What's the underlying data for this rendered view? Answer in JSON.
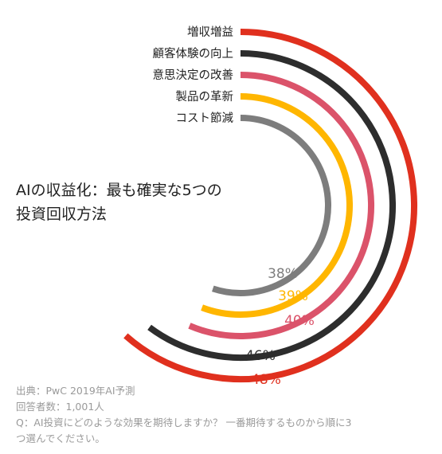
{
  "chart_data": {
    "type": "radial-bar",
    "title_lines": [
      "AIの収益化：最も確実な5つの",
      "投資回収方法"
    ],
    "unit": "%",
    "series": [
      {
        "label": "増収増益",
        "value": 48,
        "display": "48%",
        "color": "#e0301e"
      },
      {
        "label": "顧客体験の向上",
        "value": 46,
        "display": "46%",
        "color": "#2d2d2d"
      },
      {
        "label": "意思決定の改善",
        "value": 40,
        "display": "40%",
        "color": "#db536a"
      },
      {
        "label": "製品の革新",
        "value": 39,
        "display": "39%",
        "color": "#ffb600"
      },
      {
        "label": "コスト節減",
        "value": 38,
        "display": "38%",
        "color": "#7d7d7d"
      }
    ]
  },
  "notes": {
    "source": "出典：PwC 2019年AI予測",
    "respondents": "回答者数：1,001人",
    "question_line1": "Q：AI投資にどのような効果を期待しますか？ 一番期待するものから順に3",
    "question_line2": "つ選んでください。"
  }
}
